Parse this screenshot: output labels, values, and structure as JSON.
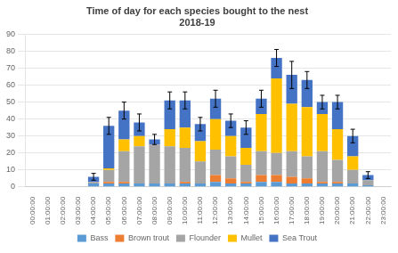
{
  "chart_data": {
    "type": "bar",
    "stacked": true,
    "title": "Time of day for each species bought to the nest\n2018-19",
    "categories": [
      "00:00:00",
      "01:00:00",
      "02:00:00",
      "03:00:00",
      "04:00:00",
      "05:00:00",
      "06:00:00",
      "07:00:00",
      "08:00:00",
      "09:00:00",
      "10:00:00",
      "11:00:00",
      "12:00:00",
      "13:00:00",
      "14:00:00",
      "15:00:00",
      "16:00:00",
      "17:00:00",
      "18:00:00",
      "19:00:00",
      "20:00:00",
      "21:00:00",
      "22:00:00",
      "23:00:00"
    ],
    "series": [
      {
        "name": "Bass",
        "color": "#5B9BD5",
        "values": [
          0,
          0,
          0,
          0,
          2,
          2,
          2,
          2,
          2,
          2,
          2,
          2,
          3,
          2,
          2,
          3,
          3,
          2,
          2,
          2,
          2,
          2,
          1,
          0
        ]
      },
      {
        "name": "Brown trout",
        "color": "#ED7D31",
        "values": [
          0,
          0,
          0,
          0,
          0,
          1,
          1,
          0,
          0,
          0,
          1,
          0,
          4,
          3,
          1,
          4,
          4,
          4,
          3,
          1,
          1,
          0,
          0,
          0
        ]
      },
      {
        "name": "Flounder",
        "color": "#A5A5A5",
        "values": [
          0,
          0,
          0,
          0,
          1,
          7,
          18,
          22,
          23,
          22,
          20,
          13,
          15,
          13,
          10,
          14,
          13,
          15,
          13,
          18,
          13,
          8,
          3,
          0
        ]
      },
      {
        "name": "Mullet",
        "color": "#FFC000",
        "values": [
          0,
          0,
          0,
          0,
          0,
          1,
          7,
          6,
          0,
          10,
          12,
          12,
          18,
          12,
          10,
          22,
          44,
          28,
          29,
          22,
          18,
          8,
          0,
          0
        ]
      },
      {
        "name": "Sea Trout",
        "color": "#4472C4",
        "values": [
          0,
          0,
          0,
          0,
          3,
          25,
          17,
          8,
          3,
          17,
          16,
          10,
          12,
          9,
          12,
          9,
          12,
          17,
          16,
          7,
          16,
          12,
          3,
          0
        ]
      }
    ],
    "error_bars": [
      0,
      0,
      0,
      0,
      2,
      5,
      5,
      5,
      3,
      5,
      5,
      4,
      5,
      4,
      4,
      5,
      5,
      8,
      5,
      4,
      4,
      4,
      2,
      0
    ],
    "ylim": [
      0,
      90
    ],
    "yticks": [
      0,
      10,
      20,
      30,
      40,
      50,
      60,
      70,
      80,
      90
    ],
    "grid": true,
    "legend": "bottom"
  }
}
